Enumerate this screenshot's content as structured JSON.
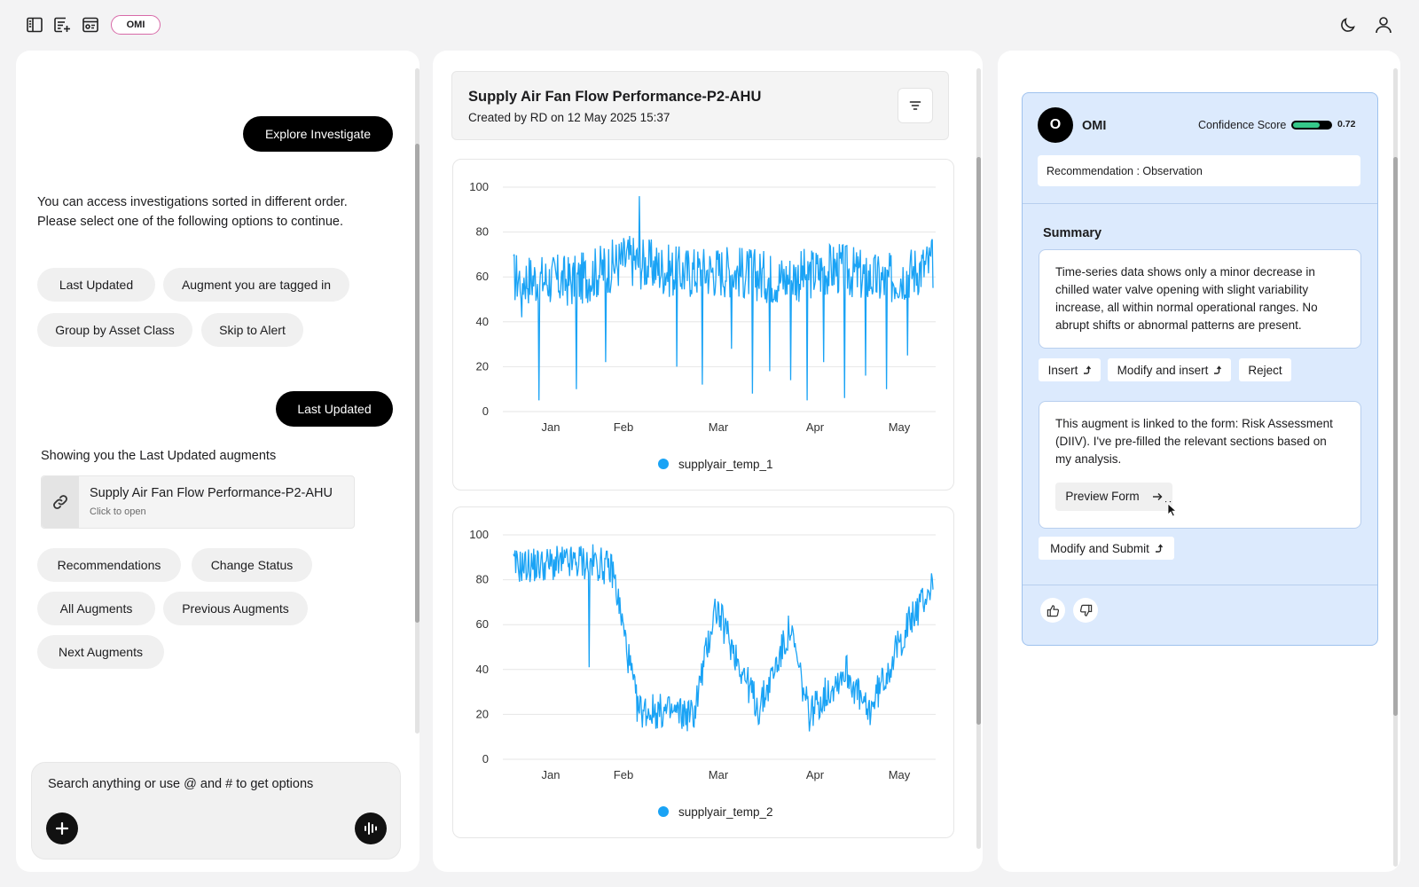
{
  "topbar": {
    "icons": [
      "sidebar-icon",
      "new-note-icon",
      "browser-window-icon",
      "moon-icon",
      "user-icon"
    ],
    "pill_label": "OMI"
  },
  "left": {
    "explore_button": "Explore Investigate",
    "intro_text": "You can access investigations sorted in different order. Please select one of the following options to continue.",
    "sort_options": [
      "Last Updated",
      "Augment you are tagged in",
      "Group by Asset Class",
      "Skip to Alert"
    ],
    "selected_button": "Last Updated",
    "showing_text": "Showing you the Last Updated augments",
    "augment_card": {
      "title": "Supply Air Fan Flow Performance-P2-AHU",
      "subtitle": "Click to open"
    },
    "action_chips": [
      "Recommendations",
      "Change Status",
      "All Augments",
      "Previous Augments",
      "Next Augments"
    ],
    "search_placeholder": "Search anything or use @ and # to get options"
  },
  "middle": {
    "title": "Supply Air Fan Flow Performance-P2-AHU",
    "subtitle": "Created by RD on 12 May 2025 15:37"
  },
  "chart_data": [
    {
      "type": "line",
      "title": "",
      "xlabel": "",
      "ylabel": "",
      "ylim": [
        0,
        100
      ],
      "yticks": [
        0,
        20,
        40,
        60,
        80,
        100
      ],
      "xticks": [
        "Jan",
        "Feb",
        "Mar",
        "Apr",
        "May"
      ],
      "legend": "bottom-center",
      "grid": true,
      "color": "#1aa3f5",
      "series": [
        {
          "name": "supplyair_temp_1",
          "x": [
            "2025-01-01",
            "2025-01-20",
            "2025-02-05",
            "2025-02-20",
            "2025-03-08",
            "2025-03-25",
            "2025-04-10",
            "2025-04-25",
            "2025-05-10"
          ],
          "values": [
            60,
            58,
            68,
            62,
            63,
            59,
            64,
            58,
            66
          ],
          "spread": 12,
          "dips": [
            [
              0.02,
              42
            ],
            [
              0.06,
              5
            ],
            [
              0.15,
              10
            ],
            [
              0.22,
              22
            ],
            [
              0.3,
              96
            ],
            [
              0.39,
              20
            ],
            [
              0.45,
              12
            ],
            [
              0.52,
              28
            ],
            [
              0.57,
              8
            ],
            [
              0.61,
              18
            ],
            [
              0.66,
              14
            ],
            [
              0.7,
              5
            ],
            [
              0.74,
              22
            ],
            [
              0.79,
              6
            ],
            [
              0.84,
              16
            ],
            [
              0.89,
              10
            ],
            [
              0.94,
              25
            ]
          ]
        }
      ]
    },
    {
      "type": "line",
      "title": "",
      "xlabel": "",
      "ylabel": "",
      "ylim": [
        0,
        100
      ],
      "yticks": [
        0,
        20,
        40,
        60,
        80,
        100
      ],
      "xticks": [
        "Jan",
        "Feb",
        "Mar",
        "Apr",
        "May"
      ],
      "legend": "bottom-center",
      "grid": true,
      "color": "#1aa3f5",
      "series": [
        {
          "name": "supplyair_temp_2",
          "x": [
            "2025-01-01",
            "2025-01-27",
            "2025-02-02",
            "2025-02-10",
            "2025-02-28",
            "2025-03-07",
            "2025-03-21",
            "2025-03-31",
            "2025-04-06",
            "2025-04-18",
            "2025-04-25",
            "2025-05-08",
            "2025-05-16"
          ],
          "values": [
            86,
            88,
            84,
            22,
            20,
            68,
            22,
            58,
            20,
            40,
            20,
            60,
            78
          ],
          "spread": 8,
          "dips": [
            [
              0.18,
              41
            ],
            [
              0.16,
              95
            ]
          ]
        }
      ]
    }
  ],
  "right": {
    "avatar_letter": "O",
    "name": "OMI",
    "confidence_label": "Confidence Score",
    "confidence": 0.72,
    "confidence_display": "0.72",
    "recommendation": "Recommendation : Observation",
    "summary_label": "Summary",
    "summary_text": "Time-series data shows only a minor decrease in chilled water valve opening with slight variability increase, all within normal operational ranges. No abrupt shifts or abnormal patterns are present.",
    "summary_actions": [
      "Insert",
      "Modify and insert",
      "Reject"
    ],
    "form_text": "This augment is linked to the form: Risk Assessment (DIIV). I've pre-filled the relevant sections based on my analysis.",
    "preview_button": "Preview Form",
    "modify_submit": "Modify and Submit",
    "feedback_icons": [
      "thumbs-up-icon",
      "thumbs-down-icon"
    ]
  }
}
